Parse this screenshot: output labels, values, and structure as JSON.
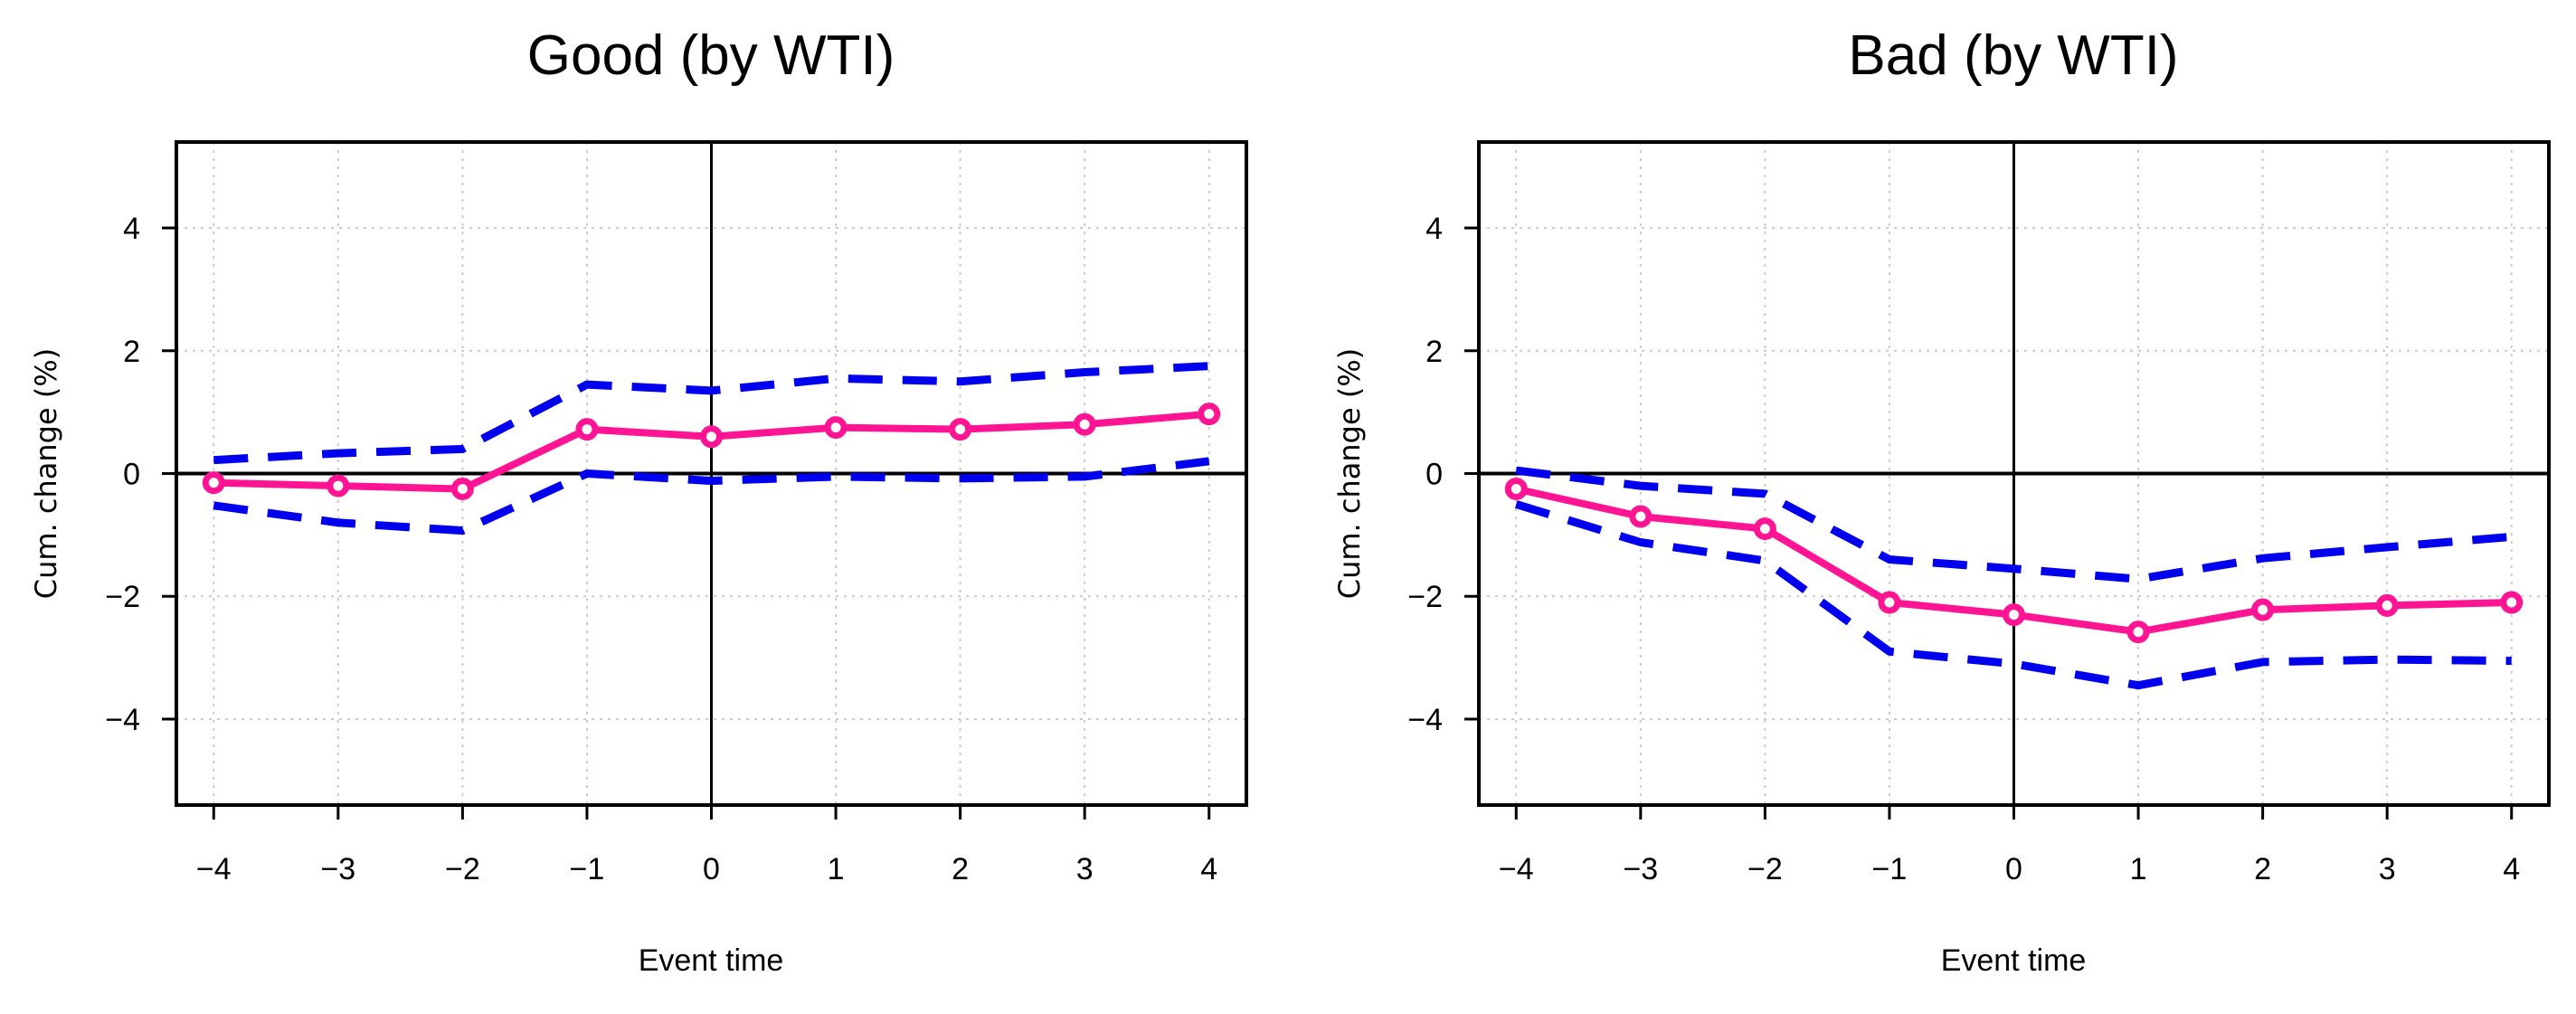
{
  "chart_data": [
    {
      "type": "line",
      "title": "Good (by WTI)",
      "xlabel": "Event time",
      "ylabel": "Cum. change (%)",
      "xlim": [
        -4.3,
        4.3
      ],
      "ylim": [
        -5.4,
        5.4
      ],
      "x": [
        -4,
        -3,
        -2,
        -1,
        0,
        1,
        2,
        3,
        4
      ],
      "xticks": [
        "−4",
        "−3",
        "−2",
        "−1",
        "0",
        "1",
        "2",
        "3",
        "4"
      ],
      "yticks": [
        {
          "value": 4,
          "label": "4"
        },
        {
          "value": 2,
          "label": "2"
        },
        {
          "value": 0,
          "label": "0"
        },
        {
          "value": -2,
          "label": "−2"
        },
        {
          "value": -4,
          "label": "−4"
        }
      ],
      "grid": true,
      "reference_lines": {
        "x": 0,
        "y": 0
      },
      "series": [
        {
          "role": "estimate",
          "color": "#ff1493",
          "style": "solid",
          "markers": true,
          "values": [
            -0.15,
            -0.2,
            -0.25,
            0.72,
            0.6,
            0.75,
            0.72,
            0.8,
            0.97
          ]
        },
        {
          "role": "upper-band",
          "color": "#0000ee",
          "style": "dashed",
          "markers": false,
          "values": [
            0.22,
            0.33,
            0.4,
            1.45,
            1.35,
            1.55,
            1.5,
            1.65,
            1.75
          ]
        },
        {
          "role": "lower-band",
          "color": "#0000ee",
          "style": "dashed",
          "markers": false,
          "values": [
            -0.52,
            -0.8,
            -0.93,
            0.0,
            -0.12,
            -0.05,
            -0.08,
            -0.05,
            0.2
          ]
        }
      ]
    },
    {
      "type": "line",
      "title": "Bad (by WTI)",
      "xlabel": "Event time",
      "ylabel": "Cum. change (%)",
      "xlim": [
        -4.3,
        4.3
      ],
      "ylim": [
        -5.4,
        5.4
      ],
      "x": [
        -4,
        -3,
        -2,
        -1,
        0,
        1,
        2,
        3,
        4
      ],
      "xticks": [
        "−4",
        "−3",
        "−2",
        "−1",
        "0",
        "1",
        "2",
        "3",
        "4"
      ],
      "yticks": [
        {
          "value": 4,
          "label": "4"
        },
        {
          "value": 2,
          "label": "2"
        },
        {
          "value": 0,
          "label": "0"
        },
        {
          "value": -2,
          "label": "−2"
        },
        {
          "value": -4,
          "label": "−4"
        }
      ],
      "grid": true,
      "reference_lines": {
        "x": 0,
        "y": 0
      },
      "series": [
        {
          "role": "estimate",
          "color": "#ff1493",
          "style": "solid",
          "markers": true,
          "values": [
            -0.25,
            -0.7,
            -0.9,
            -2.1,
            -2.3,
            -2.58,
            -2.22,
            -2.15,
            -2.1
          ]
        },
        {
          "role": "upper-band",
          "color": "#0000ee",
          "style": "dashed",
          "markers": false,
          "values": [
            0.05,
            -0.2,
            -0.33,
            -1.4,
            -1.55,
            -1.72,
            -1.38,
            -1.2,
            -1.03
          ]
        },
        {
          "role": "lower-band",
          "color": "#0000ee",
          "style": "dashed",
          "markers": false,
          "values": [
            -0.5,
            -1.12,
            -1.42,
            -2.9,
            -3.1,
            -3.45,
            -3.07,
            -3.03,
            -3.05
          ]
        }
      ]
    }
  ]
}
